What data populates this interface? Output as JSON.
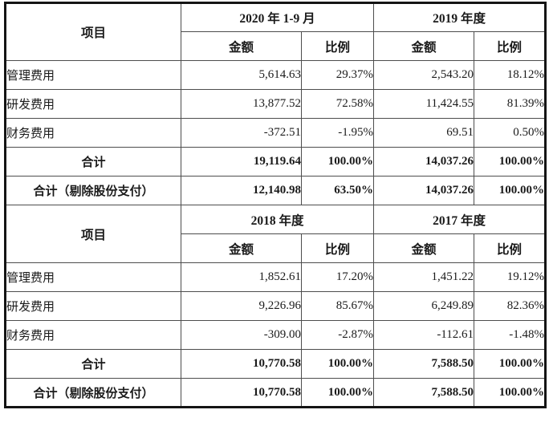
{
  "table": {
    "item_header_label": "项目",
    "sections": [
      {
        "period_headers": [
          "2020 年 1-9 月",
          "2019 年度"
        ],
        "col_headers": [
          "金额",
          "比例",
          "金额",
          "比例"
        ],
        "rows": [
          {
            "label": "管理费用",
            "values": [
              "5,614.63",
              "29.37%",
              "2,543.20",
              "18.12%"
            ]
          },
          {
            "label": "研发费用",
            "values": [
              "13,877.52",
              "72.58%",
              "11,424.55",
              "81.39%"
            ]
          },
          {
            "label": "财务费用",
            "values": [
              "-372.51",
              "-1.95%",
              "69.51",
              "0.50%"
            ]
          },
          {
            "label": "合计",
            "values": [
              "19,119.64",
              "100.00%",
              "14,037.26",
              "100.00%"
            ]
          },
          {
            "label": "合计（剔除股份支付）",
            "values": [
              "12,140.98",
              "63.50%",
              "14,037.26",
              "100.00%"
            ]
          }
        ]
      },
      {
        "period_headers": [
          "2018 年度",
          "2017 年度"
        ],
        "col_headers": [
          "金额",
          "比例",
          "金额",
          "比例"
        ],
        "rows": [
          {
            "label": "管理费用",
            "values": [
              "1,852.61",
              "17.20%",
              "1,451.22",
              "19.12%"
            ]
          },
          {
            "label": "研发费用",
            "values": [
              "9,226.96",
              "85.67%",
              "6,249.89",
              "82.36%"
            ]
          },
          {
            "label": "财务费用",
            "values": [
              "-309.00",
              "-2.87%",
              "-112.61",
              "-1.48%"
            ]
          },
          {
            "label": "合计",
            "values": [
              "10,770.58",
              "100.00%",
              "7,588.50",
              "100.00%"
            ]
          },
          {
            "label": "合计（剔除股份支付）",
            "values": [
              "10,770.58",
              "100.00%",
              "7,588.50",
              "100.00%"
            ]
          }
        ]
      }
    ]
  }
}
